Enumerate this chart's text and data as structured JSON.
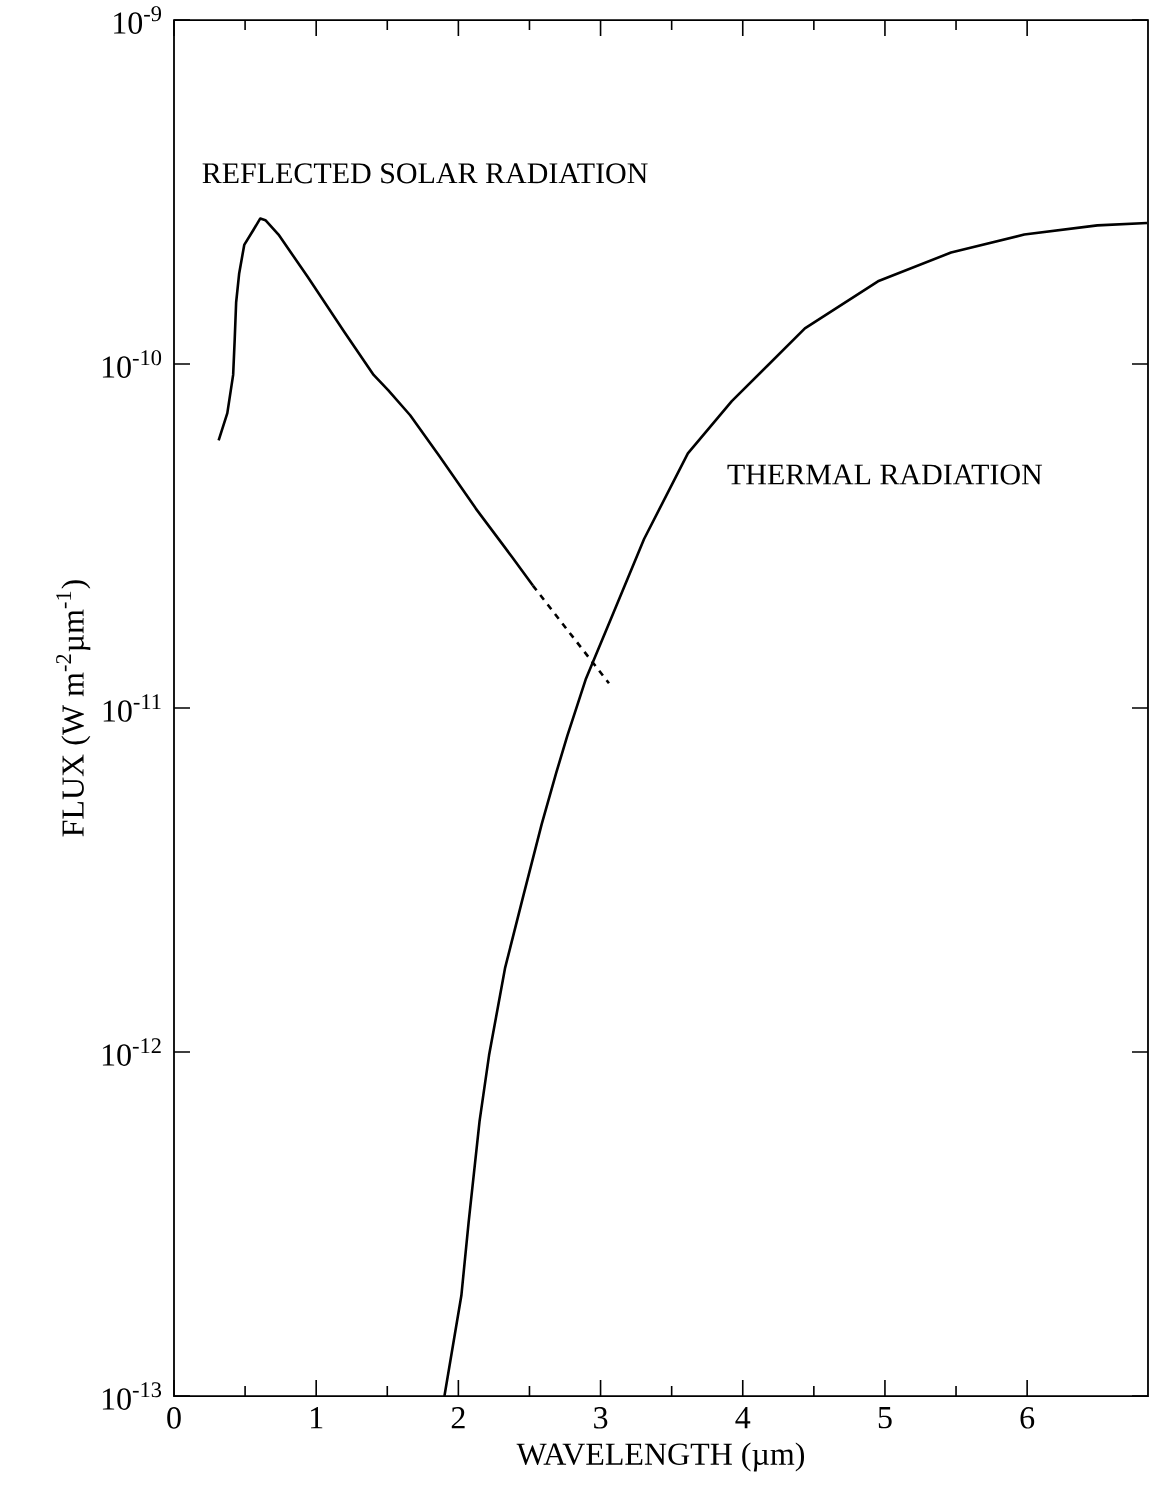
{
  "chart_data": {
    "type": "line",
    "xlabel": "WAVELENGTH (µm)",
    "ylabel": "FLUX (W m$^{-2}$µm$^{-1}$)",
    "log": "y",
    "xlim": [
      0,
      6.85
    ],
    "ylim": [
      1e-13,
      1e-09
    ],
    "xticks": [
      0,
      1,
      2,
      3,
      4,
      5,
      6
    ],
    "yticks": [
      {
        "value": 1e-13,
        "label": "10$^{-13}$"
      },
      {
        "value": 1e-12,
        "label": "10$^{-12}$"
      },
      {
        "value": 1e-11,
        "label": "10$^{-11}$"
      },
      {
        "value": 1e-10,
        "label": "10$^{-10}$"
      },
      {
        "value": 1e-09,
        "label": "10$^{-9}$"
      }
    ],
    "grid": false,
    "legend": false,
    "marker": "none",
    "series": [
      {
        "name": "REFLECTED SOLAR RADIATION",
        "color": "#000000",
        "line_style": "solid",
        "x": [
          0.314,
          0.375,
          0.416,
          0.427,
          0.437,
          0.458,
          0.494,
          0.555,
          0.607,
          0.643,
          0.735,
          0.941,
          1.198,
          1.404,
          1.506,
          1.661,
          1.866,
          2.123,
          2.38,
          2.524
        ],
        "values": [
          6e-11,
          7.2e-11,
          9.3e-11,
          1.18e-10,
          1.51e-10,
          1.83e-10,
          2.22e-10,
          2.44e-10,
          2.65e-10,
          2.62e-10,
          2.38e-10,
          1.79e-10,
          1.24e-10,
          9.3e-11,
          8.4e-11,
          7.1e-11,
          5.4e-11,
          3.8e-11,
          2.74e-11,
          2.27e-11
        ]
      },
      {
        "color": "#000000",
        "line_style": "dashed",
        "x": [
          2.524,
          3.059
        ],
        "values": [
          2.27e-11,
          1.18e-11
        ]
      },
      {
        "name": "THERMAL RADIATION",
        "color": "#000000",
        "line_style": "solid",
        "x": [
          1.902,
          2.021,
          2.072,
          2.149,
          2.216,
          2.329,
          2.458,
          2.586,
          2.689,
          2.766,
          2.895,
          3.09,
          3.306,
          3.614,
          3.923,
          4.437,
          4.951,
          5.465,
          5.98,
          6.494,
          6.843
        ],
        "values": [
          1e-13,
          1.96e-13,
          3.2e-13,
          6.3e-13,
          9.8e-13,
          1.76e-12,
          2.86e-12,
          4.6e-12,
          6.5e-12,
          8.3e-12,
          1.21e-11,
          1.89e-11,
          3.1e-11,
          5.5e-11,
          7.8e-11,
          1.27e-10,
          1.74e-10,
          2.11e-10,
          2.38e-10,
          2.53e-10,
          2.57e-10
        ]
      }
    ]
  }
}
